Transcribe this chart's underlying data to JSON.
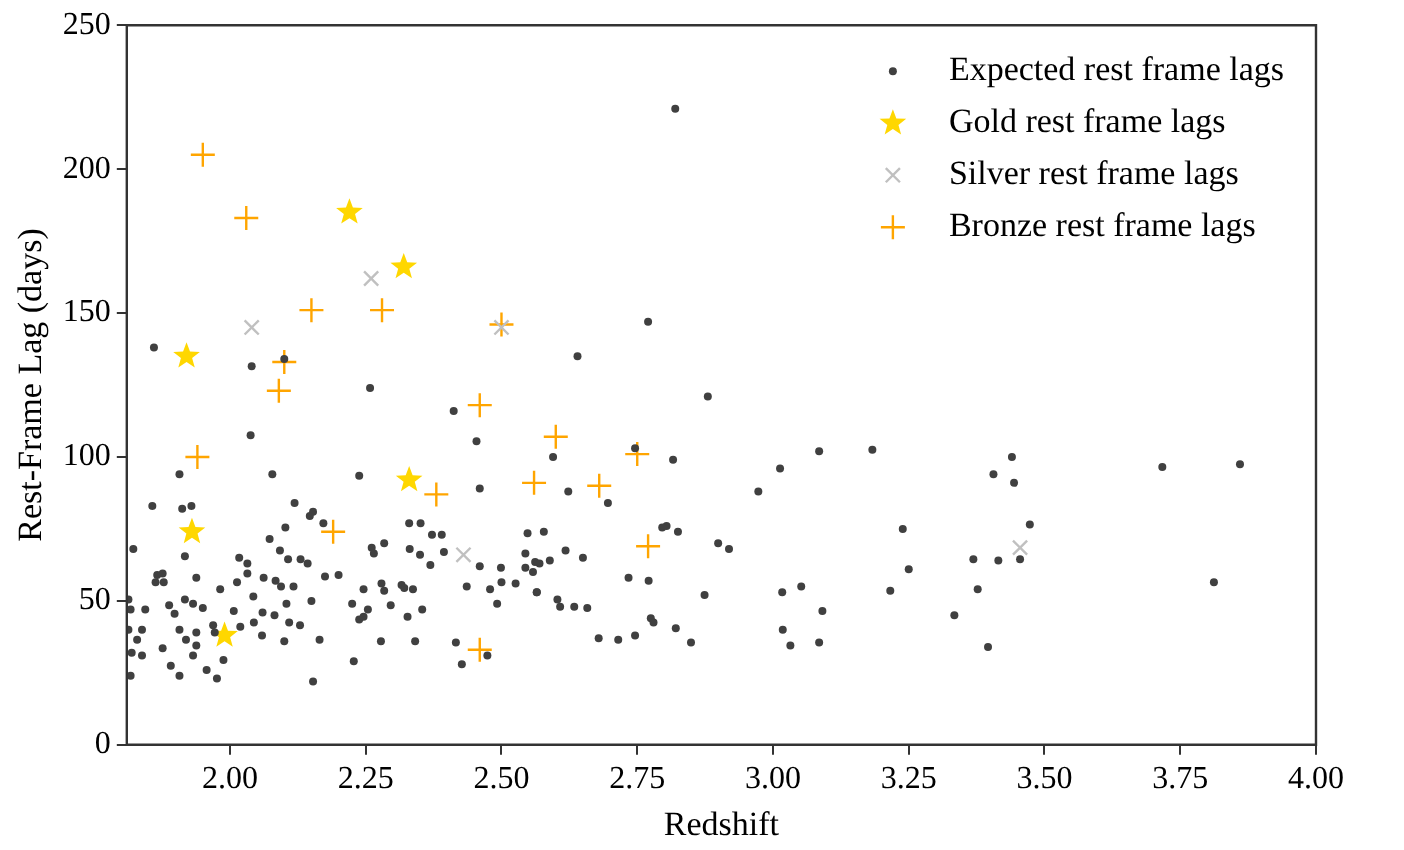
{
  "chart_data": {
    "type": "scatter",
    "xlabel": "Redshift",
    "ylabel": "Rest-Frame Lag (days)",
    "xlim": [
      1.81,
      4.0
    ],
    "ylim": [
      0,
      250
    ],
    "xticks": [
      {
        "value": 2.0,
        "label": "2.00"
      },
      {
        "value": 2.25,
        "label": "2.25"
      },
      {
        "value": 2.5,
        "label": "2.50"
      },
      {
        "value": 2.75,
        "label": "2.75"
      },
      {
        "value": 3.0,
        "label": "3.00"
      },
      {
        "value": 3.25,
        "label": "3.25"
      },
      {
        "value": 3.5,
        "label": "3.50"
      },
      {
        "value": 3.75,
        "label": "3.75"
      },
      {
        "value": 4.0,
        "label": "4.00"
      }
    ],
    "yticks": [
      0,
      50,
      100,
      150,
      200,
      250
    ],
    "grid": false,
    "legend": "top right",
    "series": [
      {
        "name": "Expected rest frame lags",
        "color": "#404040",
        "marker": "circle",
        "x": [
          1.86,
          2.04,
          2.1,
          2.82,
          2.77,
          2.64,
          2.88,
          2.595,
          2.746,
          2.816,
          2.623,
          2.696,
          3.013,
          2.973,
          3.085,
          3.183,
          2.578,
          2.796,
          2.804,
          2.825,
          2.899,
          2.919,
          3.239,
          3.25,
          2.558,
          2.57,
          2.589,
          2.618,
          2.65,
          2.734,
          2.771,
          2.565,
          2.874,
          3.017,
          3.052,
          3.216,
          3.091,
          2.603,
          2.608,
          2.634,
          2.658,
          2.775,
          2.78,
          2.679,
          2.715,
          2.746,
          2.821,
          2.849,
          3.018,
          3.032,
          3.085,
          3.44,
          3.406,
          3.444,
          3.473,
          3.369,
          3.415,
          3.455,
          3.377,
          3.334,
          3.396,
          3.717,
          3.86,
          3.812,
          2.258,
          2.038,
          2.078,
          1.907,
          2.238,
          1.857,
          1.912,
          1.929,
          2.119,
          2.412,
          2.454,
          2.46,
          2.147,
          2.153,
          2.102,
          1.822,
          1.917,
          2.073,
          2.092,
          2.017,
          2.032,
          2.107,
          2.13,
          2.143,
          2.172,
          2.261,
          2.265,
          2.284,
          2.33,
          2.351,
          2.331,
          2.35,
          2.372,
          2.39,
          2.394,
          2.46,
          2.499,
          2.548,
          2.544,
          2.544,
          2.562,
          1.866,
          1.876,
          1.863,
          1.878,
          1.938,
          2.062,
          2.084,
          2.032,
          2.013,
          2.094,
          2.117,
          2.175,
          2.2,
          2.246,
          2.279,
          2.284,
          2.316,
          2.321,
          2.337,
          2.369,
          2.436,
          2.479,
          2.5,
          2.526,
          2.565,
          1.813,
          1.817,
          1.844,
          1.888,
          1.917,
          1.932,
          1.95,
          1.982,
          2.007,
          2.043,
          2.06,
          2.104,
          2.15,
          2.225,
          2.254,
          2.296,
          2.327,
          2.354,
          2.492,
          1.898,
          1.813,
          1.829,
          1.838,
          1.819,
          1.838,
          1.876,
          1.907,
          1.919,
          1.938,
          1.938,
          1.932,
          1.969,
          1.972,
          2.019,
          2.044,
          2.059,
          2.082,
          2.1,
          2.109,
          2.129,
          2.165,
          2.238,
          2.246,
          2.278,
          2.341,
          1.988,
          1.957,
          1.976,
          1.907,
          1.891,
          1.817,
          2.153,
          2.228,
          2.416,
          2.427,
          2.474
        ],
        "values": [
          138,
          131.5,
          134,
          221,
          147,
          135,
          121,
          100,
          103,
          99,
          88,
          84,
          96,
          88,
          102,
          102.5,
          74,
          75.5,
          76,
          74,
          70,
          68,
          75,
          61,
          60,
          63,
          64,
          67.5,
          65,
          58,
          57,
          53,
          52,
          53,
          55,
          53.5,
          46.5,
          50.5,
          48,
          48,
          47.5,
          44,
          42.5,
          37,
          36.5,
          38,
          40.5,
          35.5,
          40,
          34.5,
          35.5,
          100,
          94,
          91,
          76.5,
          64.5,
          64,
          64.5,
          54,
          45,
          34,
          96.5,
          97.5,
          56.5,
          124,
          107.5,
          94,
          94,
          93.5,
          83,
          82,
          83,
          84,
          116,
          105.5,
          89,
          79.5,
          81,
          75.5,
          68,
          65.5,
          71.5,
          67.5,
          65,
          63,
          64.5,
          64.5,
          63,
          77,
          68.5,
          66.5,
          70,
          77,
          77,
          68,
          66,
          73,
          73,
          67,
          62,
          61.5,
          73.5,
          66.5,
          61.5,
          63.5,
          59,
          59.5,
          56.5,
          56.5,
          58,
          58,
          57,
          59.5,
          56.5,
          55,
          55,
          58.5,
          59,
          54,
          56,
          53.5,
          55.5,
          54.5,
          54,
          62.5,
          55,
          54,
          56.5,
          56,
          53,
          50.5,
          47,
          47,
          48.5,
          50.5,
          49,
          47.5,
          54,
          46.5,
          51.5,
          46,
          49,
          50,
          49,
          47,
          48.5,
          44.5,
          47,
          49,
          45.5,
          40,
          36.5,
          40,
          32,
          31,
          33.5,
          40,
          36.5,
          39,
          34.5,
          31,
          41.5,
          39,
          41,
          42.5,
          38,
          45,
          36,
          42.5,
          41.5,
          36.5,
          43.5,
          44.5,
          36,
          36,
          29.5,
          26,
          23,
          24,
          27.5,
          24,
          22,
          29,
          35.5,
          28,
          31
        ]
      },
      {
        "name": "Gold rest frame lags",
        "color": "#ffd700",
        "marker": "star",
        "x": [
          1.92,
          1.93,
          2.22,
          2.32,
          2.33,
          1.99
        ],
        "values": [
          135,
          74,
          185,
          166,
          92,
          38
        ]
      },
      {
        "name": "Silver rest frame lags",
        "color": "#c0c0c0",
        "marker": "cross",
        "x": [
          2.04,
          2.26,
          2.5,
          2.43,
          3.455
        ],
        "values": [
          145,
          162,
          145,
          66,
          68.5
        ]
      },
      {
        "name": "Bronze rest frame lags",
        "color": "#ffa500",
        "marker": "plus",
        "x": [
          1.95,
          2.03,
          2.15,
          2.28,
          2.1,
          2.5,
          2.09,
          1.94,
          2.19,
          2.46,
          2.38,
          2.56,
          2.46,
          2.6,
          2.68,
          2.75,
          2.77
        ],
        "values": [
          205,
          183,
          151,
          151,
          133,
          146,
          123,
          100,
          74,
          118,
          87,
          91,
          33,
          107,
          90,
          101,
          69
        ]
      }
    ]
  }
}
